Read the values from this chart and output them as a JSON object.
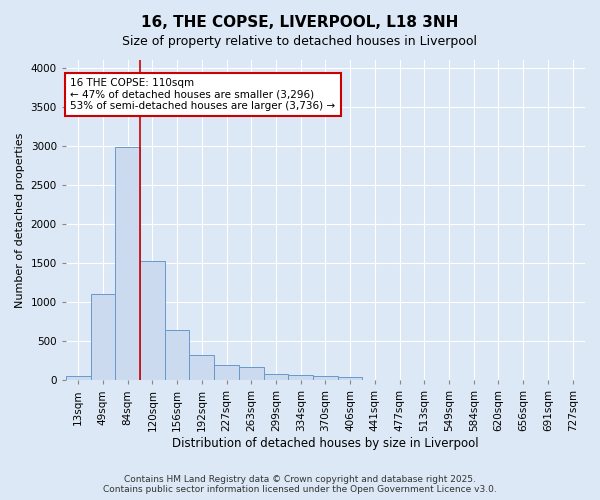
{
  "title": "16, THE COPSE, LIVERPOOL, L18 3NH",
  "subtitle": "Size of property relative to detached houses in Liverpool",
  "xlabel": "Distribution of detached houses by size in Liverpool",
  "ylabel": "Number of detached properties",
  "bin_labels": [
    "13sqm",
    "49sqm",
    "84sqm",
    "120sqm",
    "156sqm",
    "192sqm",
    "227sqm",
    "263sqm",
    "299sqm",
    "334sqm",
    "370sqm",
    "406sqm",
    "441sqm",
    "477sqm",
    "513sqm",
    "549sqm",
    "584sqm",
    "620sqm",
    "656sqm",
    "691sqm",
    "727sqm"
  ],
  "bar_values": [
    55,
    1110,
    2980,
    1530,
    650,
    330,
    190,
    175,
    80,
    70,
    50,
    40,
    0,
    0,
    0,
    0,
    0,
    0,
    0,
    0,
    0
  ],
  "bar_color": "#ccdaf0",
  "bar_edge_color": "#6699cc",
  "vline_x": 3.0,
  "vline_color": "#cc0000",
  "annotation_text": "16 THE COPSE: 110sqm\n← 47% of detached houses are smaller (3,296)\n53% of semi-detached houses are larger (3,736) →",
  "annotation_box_color": "#ffffff",
  "annotation_box_edge": "#cc0000",
  "ylim": [
    0,
    4100
  ],
  "yticks": [
    0,
    500,
    1000,
    1500,
    2000,
    2500,
    3000,
    3500,
    4000
  ],
  "footer1": "Contains HM Land Registry data © Crown copyright and database right 2025.",
  "footer2": "Contains public sector information licensed under the Open Government Licence v3.0.",
  "bg_color": "#dce8f5",
  "plot_bg_color": "#dce8f5",
  "grid_color": "#ffffff",
  "title_fontsize": 11,
  "subtitle_fontsize": 9,
  "axis_label_fontsize": 8,
  "tick_fontsize": 7.5,
  "footer_fontsize": 6.5
}
